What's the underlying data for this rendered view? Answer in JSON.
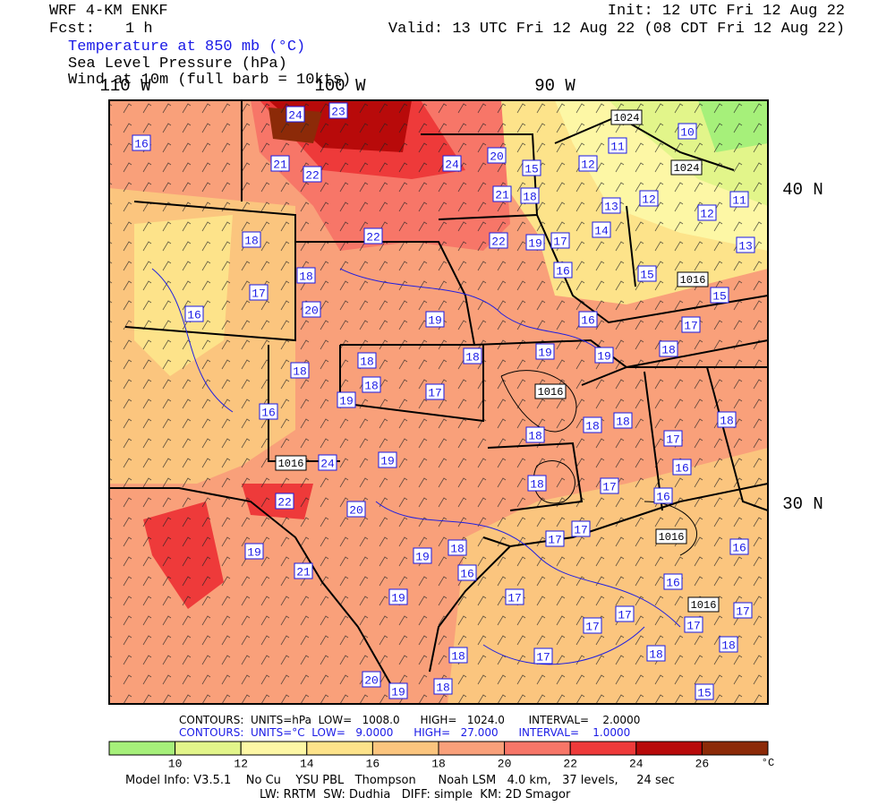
{
  "header": {
    "model": "WRF 4-KM ENKF",
    "fcst_label": "Fcst:",
    "fcst": "1 h",
    "init": "Init: 12 UTC Fri 12 Aug 22",
    "valid": "Valid: 13 UTC Fri 12 Aug 22 (08 CDT Fri 12 Aug 22)",
    "fields": [
      "Temperature at 850 mb (°C)",
      "Sea Level Pressure (hPa)",
      "Wind at 10m (full barb = 10kts)"
    ]
  },
  "map": {
    "lon_labels": [
      "110 W",
      "100 W",
      "90 W"
    ],
    "lat_labels": [
      "40 N",
      "30 N"
    ],
    "pressure_labels": [
      "1024",
      "1024",
      "1016",
      "1016",
      "1016",
      "1016",
      "1016"
    ],
    "temp_labels": [
      "24",
      "23",
      "16",
      "21",
      "22",
      "24",
      "20",
      "15",
      "12",
      "11",
      "10",
      "21",
      "18",
      "12",
      "13",
      "12",
      "11",
      "18",
      "22",
      "22",
      "19",
      "17",
      "14",
      "18",
      "17",
      "16",
      "15",
      "13",
      "15",
      "20",
      "16",
      "19",
      "16",
      "17",
      "18",
      "18",
      "18",
      "19",
      "19",
      "18",
      "18",
      "17",
      "19",
      "16",
      "18",
      "18",
      "18",
      "18",
      "17",
      "19",
      "24",
      "16",
      "18",
      "17",
      "22",
      "20",
      "16",
      "17",
      "17",
      "19",
      "18",
      "19",
      "16",
      "21",
      "16",
      "17",
      "19",
      "16",
      "17",
      "17",
      "17",
      "17",
      "18",
      "18",
      "17",
      "18",
      "20",
      "19",
      "18",
      "15"
    ]
  },
  "contours": {
    "pressure": "CONTOURS:  UNITS=hPa  LOW=   1008.0      HIGH=   1024.0       INTERVAL=    2.0000",
    "temperature": "CONTOURS:  UNITS=°C  LOW=   9.0000      HIGH=   27.000      INTERVAL=    1.0000"
  },
  "colorbar": {
    "ticks": [
      "10",
      "12",
      "14",
      "16",
      "18",
      "20",
      "22",
      "24",
      "26"
    ],
    "unit": "°C",
    "colors": [
      "#a6f07a",
      "#e2f58a",
      "#fdf7a5",
      "#fde38a",
      "#fbc57e",
      "#f9a07a",
      "#f77668",
      "#ee3a3a",
      "#b80a0a",
      "#8c2a08"
    ]
  },
  "footer": {
    "line1": "Model Info: V3.5.1    No Cu    YSU PBL   Thompson      Noah LSM   4.0 km,   37 levels,     24 sec",
    "line2": "LW: RRTM  SW: Dudhia   DIFF: simple  KM: 2D Smagor"
  }
}
